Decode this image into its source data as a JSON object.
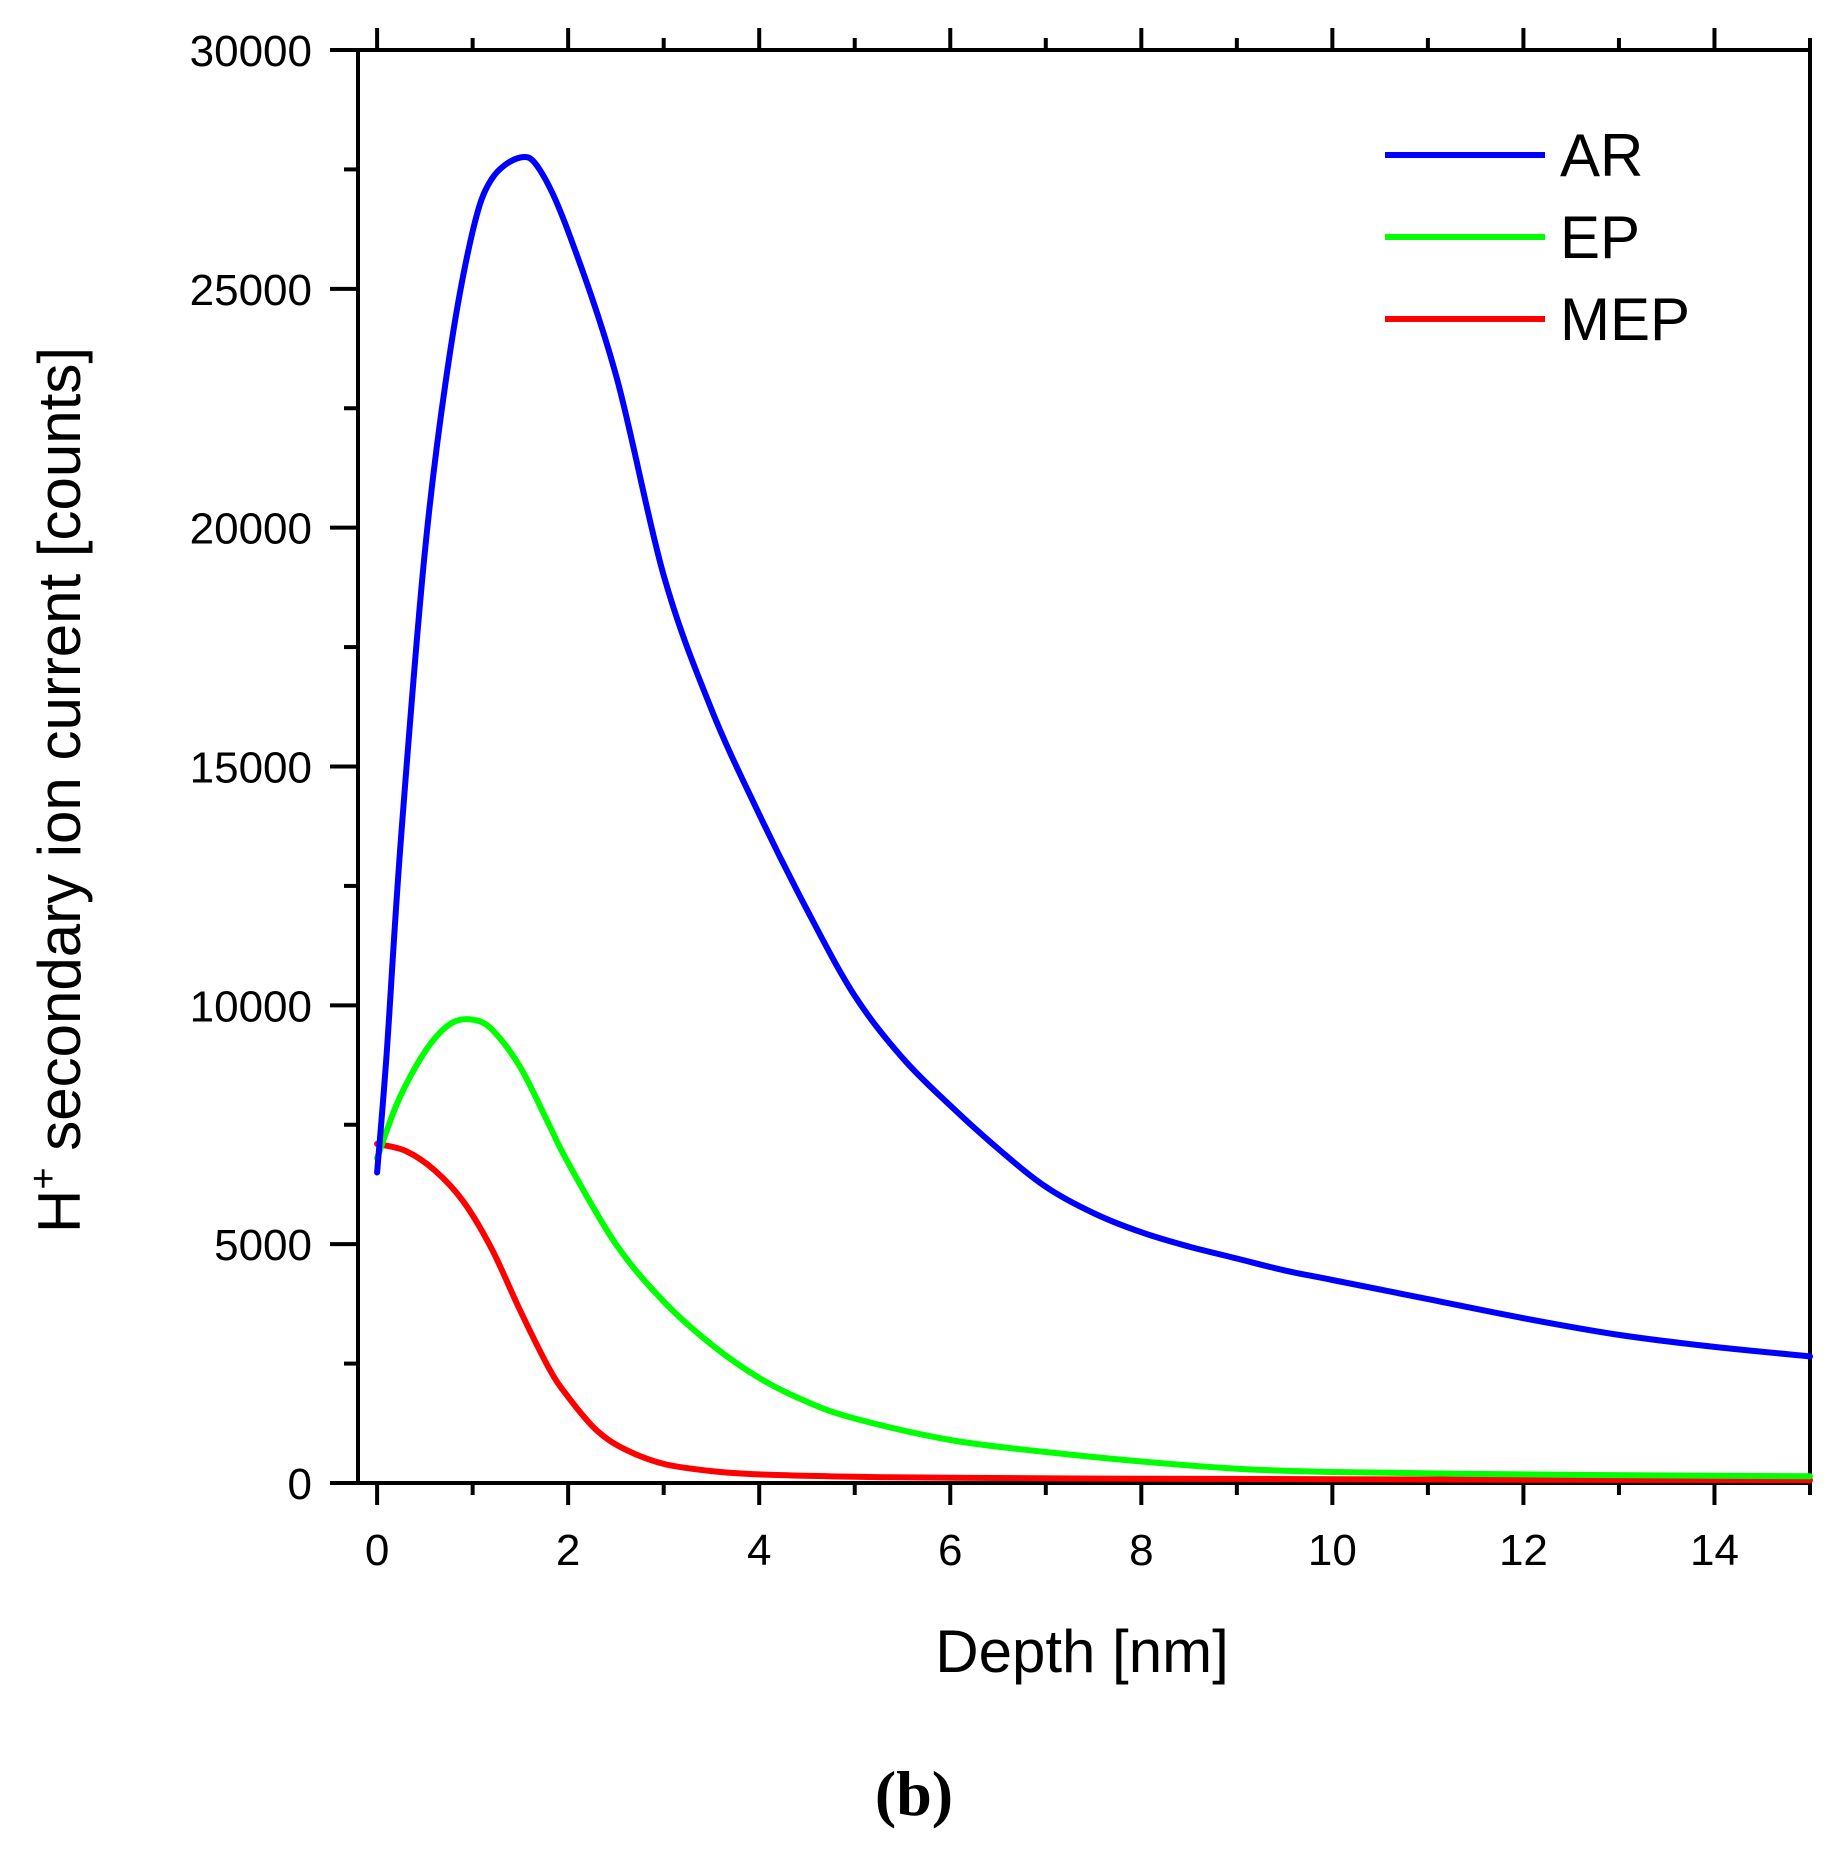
{
  "chart_data": {
    "type": "line",
    "xlabel": "Depth [nm]",
    "ylabel_main": "H",
    "ylabel_sup": "+",
    "ylabel_rest": " secondary ion current [counts]",
    "panel_label": "(b)",
    "xlim": [
      -0.2,
      15
    ],
    "ylim": [
      0,
      30000
    ],
    "x_ticks": [
      0,
      2,
      4,
      6,
      8,
      10,
      12,
      14
    ],
    "x_tick_labels": [
      "0",
      "2",
      "4",
      "6",
      "8",
      "10",
      "12",
      "14"
    ],
    "y_ticks": [
      0,
      5000,
      10000,
      15000,
      20000,
      25000,
      30000
    ],
    "y_tick_labels": [
      "0",
      "5000",
      "10000",
      "15000",
      "20000",
      "25000",
      "30000"
    ],
    "grid": false,
    "legend_position": "top-right",
    "series": [
      {
        "name": "AR",
        "color": "#0000ff",
        "points": [
          [
            0,
            6500
          ],
          [
            0.1,
            9000
          ],
          [
            0.25,
            13500
          ],
          [
            0.5,
            19500
          ],
          [
            0.75,
            23500
          ],
          [
            1.0,
            26200
          ],
          [
            1.2,
            27300
          ],
          [
            1.5,
            27750
          ],
          [
            1.7,
            27500
          ],
          [
            2.0,
            26200
          ],
          [
            2.5,
            23200
          ],
          [
            3.0,
            19000
          ],
          [
            3.5,
            16200
          ],
          [
            4.0,
            14000
          ],
          [
            4.5,
            12000
          ],
          [
            5.0,
            10200
          ],
          [
            5.5,
            8900
          ],
          [
            6.0,
            7900
          ],
          [
            6.5,
            7000
          ],
          [
            7.0,
            6200
          ],
          [
            7.5,
            5650
          ],
          [
            8.0,
            5250
          ],
          [
            8.5,
            4950
          ],
          [
            9.0,
            4700
          ],
          [
            9.5,
            4450
          ],
          [
            10.0,
            4250
          ],
          [
            11.0,
            3850
          ],
          [
            12.0,
            3450
          ],
          [
            13.0,
            3100
          ],
          [
            14.0,
            2850
          ],
          [
            15.0,
            2650
          ]
        ]
      },
      {
        "name": "EP",
        "color": "#00ff00",
        "points": [
          [
            0,
            6800
          ],
          [
            0.2,
            7900
          ],
          [
            0.4,
            8700
          ],
          [
            0.6,
            9300
          ],
          [
            0.8,
            9650
          ],
          [
            1.0,
            9700
          ],
          [
            1.2,
            9500
          ],
          [
            1.5,
            8700
          ],
          [
            1.8,
            7500
          ],
          [
            2.0,
            6700
          ],
          [
            2.5,
            5000
          ],
          [
            3.0,
            3800
          ],
          [
            3.5,
            2900
          ],
          [
            4.0,
            2200
          ],
          [
            4.5,
            1700
          ],
          [
            5.0,
            1350
          ],
          [
            6.0,
            900
          ],
          [
            7.0,
            650
          ],
          [
            8.0,
            450
          ],
          [
            9.0,
            300
          ],
          [
            10.0,
            230
          ],
          [
            12.0,
            180
          ],
          [
            14.0,
            150
          ],
          [
            15.0,
            140
          ]
        ]
      },
      {
        "name": "MEP",
        "color": "#ff0000",
        "points": [
          [
            0,
            7100
          ],
          [
            0.3,
            6950
          ],
          [
            0.6,
            6550
          ],
          [
            0.9,
            5900
          ],
          [
            1.2,
            4900
          ],
          [
            1.5,
            3600
          ],
          [
            1.8,
            2400
          ],
          [
            2.0,
            1800
          ],
          [
            2.3,
            1100
          ],
          [
            2.6,
            700
          ],
          [
            3.0,
            400
          ],
          [
            3.5,
            250
          ],
          [
            4.0,
            180
          ],
          [
            5.0,
            130
          ],
          [
            6.0,
            110
          ],
          [
            8.0,
            90
          ],
          [
            10.0,
            80
          ],
          [
            12.0,
            70
          ],
          [
            15.0,
            60
          ]
        ]
      }
    ]
  }
}
